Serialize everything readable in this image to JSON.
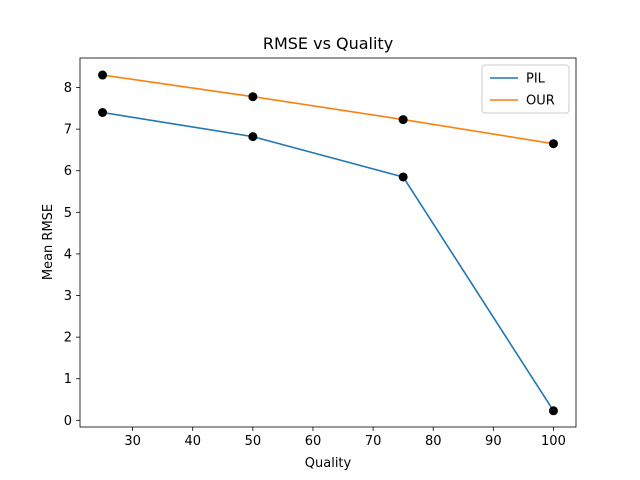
{
  "chart_data": {
    "type": "line",
    "title": "RMSE vs Quality",
    "xlabel": "Quality",
    "ylabel": "Mean RMSE",
    "x": [
      25,
      50,
      75,
      100
    ],
    "xlim": [
      21.25,
      103.75
    ],
    "ylim": [
      -0.16,
      8.71
    ],
    "xticks": [
      30,
      40,
      50,
      60,
      70,
      80,
      90,
      100
    ],
    "yticks": [
      0,
      1,
      2,
      3,
      4,
      5,
      6,
      7,
      8
    ],
    "grid": false,
    "legend_position": "top-right",
    "markers": "black dots at each data point",
    "series": [
      {
        "name": "PIL",
        "values": [
          7.4,
          6.82,
          5.85,
          0.23
        ],
        "color": "#1f77b4"
      },
      {
        "name": "OUR",
        "values": [
          8.3,
          7.78,
          7.23,
          6.65
        ],
        "color": "#ff7f0e"
      }
    ]
  }
}
